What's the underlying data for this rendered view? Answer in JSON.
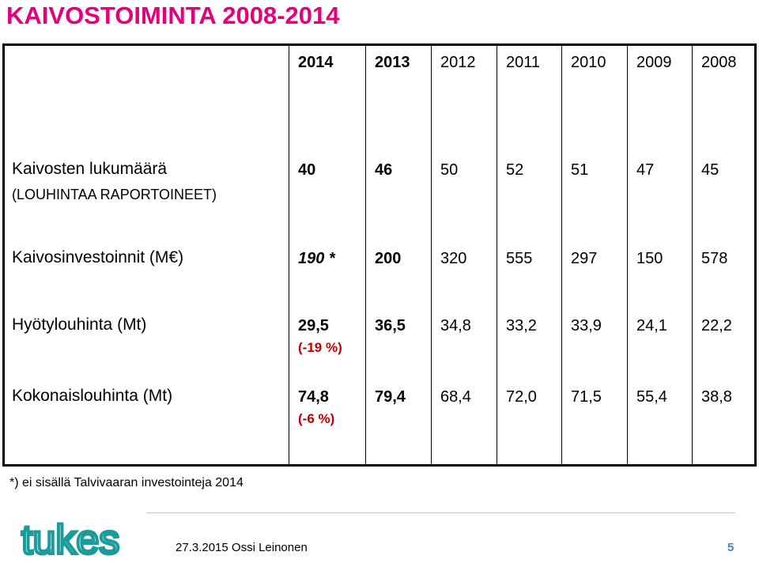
{
  "header": {
    "title": "KAIVOSTOIMINTA 2008-2014"
  },
  "table": {
    "columns": [
      "2014",
      "2013",
      "2012",
      "2011",
      "2010",
      "2009",
      "2008"
    ],
    "rows": [
      {
        "label": "Kaivosten lukumäärä",
        "sublabel": "(LOUHINTAA RAPORTOINEET)",
        "values": [
          "40",
          "46",
          "50",
          "52",
          "51",
          "47",
          "45"
        ]
      },
      {
        "label": "Kaivosinvestoinnit (M€)",
        "values": [
          "190 *",
          "200",
          "320",
          "555",
          "297",
          "150",
          "578"
        ]
      },
      {
        "label": "Hyötylouhinta (Mt)",
        "values": [
          "29,5",
          "36,5",
          "34,8",
          "33,2",
          "33,9",
          "24,1",
          "22,2"
        ],
        "note": "(-19 %)"
      },
      {
        "label": "Kokonaislouhinta (Mt)",
        "values": [
          "74,8",
          "79,4",
          "68,4",
          "72,0",
          "71,5",
          "55,4",
          "38,8"
        ],
        "note": "(-6 %)"
      }
    ]
  },
  "footnote": "*) ei sisällä Talvivaaran investointeja 2014",
  "footer": {
    "logo": "tukes",
    "date": "27.3.2015 Ossi Leinonen",
    "page": "5"
  }
}
